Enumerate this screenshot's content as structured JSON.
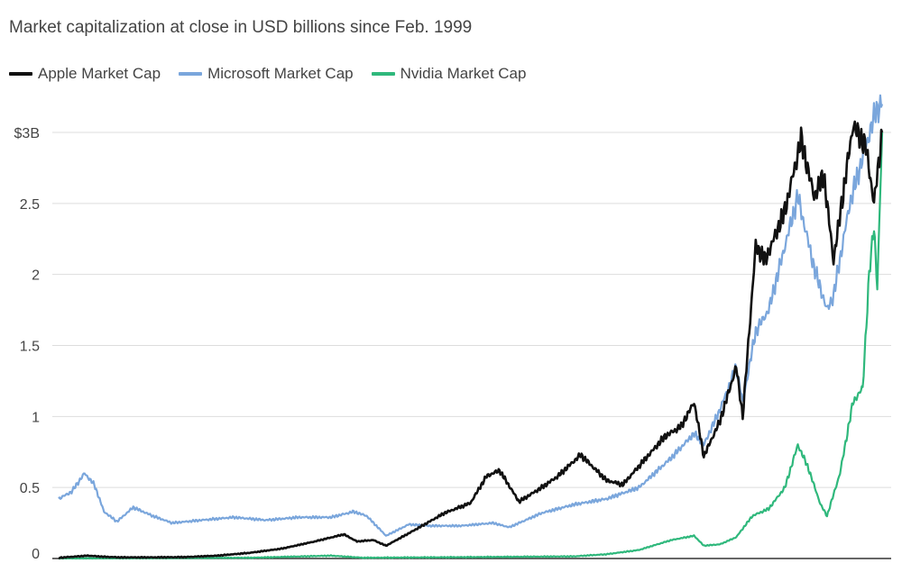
{
  "chart_data": {
    "type": "line",
    "title": "",
    "subtitle": "Market capitalization at close in USD billions since Feb. 1999",
    "xlabel": "",
    "ylabel": "",
    "xlim": [
      1999.1,
      2024.5
    ],
    "ylim": [
      0,
      3.0
    ],
    "y_ticks": [
      {
        "value": 3.0,
        "label": "$3B"
      },
      {
        "value": 2.5,
        "label": "2.5"
      },
      {
        "value": 2.0,
        "label": "2"
      },
      {
        "value": 1.5,
        "label": "1.5"
      },
      {
        "value": 1.0,
        "label": "1"
      },
      {
        "value": 0.5,
        "label": "0.5"
      },
      {
        "value": 0.0,
        "label": "0"
      }
    ],
    "grid": true,
    "legend_position": "top-left",
    "series": [
      {
        "name": "Apple Market Cap",
        "color": "#111111",
        "points": [
          [
            1999.1,
            0.005
          ],
          [
            2000.0,
            0.02
          ],
          [
            2000.5,
            0.012
          ],
          [
            2001.0,
            0.008
          ],
          [
            2002.0,
            0.008
          ],
          [
            2003.0,
            0.01
          ],
          [
            2004.0,
            0.02
          ],
          [
            2005.0,
            0.04
          ],
          [
            2006.0,
            0.07
          ],
          [
            2007.0,
            0.12
          ],
          [
            2007.9,
            0.17
          ],
          [
            2008.3,
            0.12
          ],
          [
            2008.8,
            0.13
          ],
          [
            2009.2,
            0.09
          ],
          [
            2010.0,
            0.19
          ],
          [
            2011.0,
            0.32
          ],
          [
            2011.8,
            0.39
          ],
          [
            2012.3,
            0.58
          ],
          [
            2012.7,
            0.62
          ],
          [
            2013.3,
            0.4
          ],
          [
            2014.0,
            0.5
          ],
          [
            2014.5,
            0.58
          ],
          [
            2015.2,
            0.73
          ],
          [
            2016.0,
            0.55
          ],
          [
            2016.5,
            0.52
          ],
          [
            2017.0,
            0.65
          ],
          [
            2017.8,
            0.86
          ],
          [
            2018.3,
            0.93
          ],
          [
            2018.7,
            1.1
          ],
          [
            2019.0,
            0.72
          ],
          [
            2019.5,
            0.97
          ],
          [
            2020.0,
            1.35
          ],
          [
            2020.2,
            1.0
          ],
          [
            2020.6,
            2.2
          ],
          [
            2020.9,
            2.1
          ],
          [
            2021.5,
            2.45
          ],
          [
            2022.0,
            2.95
          ],
          [
            2022.4,
            2.55
          ],
          [
            2022.7,
            2.7
          ],
          [
            2023.0,
            2.1
          ],
          [
            2023.6,
            3.05
          ],
          [
            2024.0,
            2.9
          ],
          [
            2024.25,
            2.5
          ],
          [
            2024.5,
            3.0
          ]
        ]
      },
      {
        "name": "Microsoft Market Cap",
        "color": "#7aa6dc",
        "points": [
          [
            1999.1,
            0.42
          ],
          [
            1999.5,
            0.47
          ],
          [
            1999.9,
            0.6
          ],
          [
            2000.2,
            0.52
          ],
          [
            2000.5,
            0.33
          ],
          [
            2000.9,
            0.26
          ],
          [
            2001.4,
            0.36
          ],
          [
            2002.0,
            0.3
          ],
          [
            2002.6,
            0.25
          ],
          [
            2003.5,
            0.27
          ],
          [
            2004.5,
            0.29
          ],
          [
            2005.5,
            0.27
          ],
          [
            2006.5,
            0.29
          ],
          [
            2007.5,
            0.29
          ],
          [
            2008.2,
            0.33
          ],
          [
            2008.6,
            0.3
          ],
          [
            2009.2,
            0.16
          ],
          [
            2009.9,
            0.24
          ],
          [
            2010.5,
            0.23
          ],
          [
            2011.5,
            0.23
          ],
          [
            2012.5,
            0.25
          ],
          [
            2013.0,
            0.22
          ],
          [
            2014.0,
            0.32
          ],
          [
            2015.0,
            0.38
          ],
          [
            2016.0,
            0.42
          ],
          [
            2017.0,
            0.5
          ],
          [
            2018.0,
            0.71
          ],
          [
            2018.7,
            0.88
          ],
          [
            2019.0,
            0.8
          ],
          [
            2019.5,
            1.05
          ],
          [
            2020.0,
            1.35
          ],
          [
            2020.2,
            1.1
          ],
          [
            2020.6,
            1.6
          ],
          [
            2021.0,
            1.75
          ],
          [
            2021.5,
            2.2
          ],
          [
            2021.9,
            2.55
          ],
          [
            2022.4,
            2.05
          ],
          [
            2022.8,
            1.75
          ],
          [
            2023.0,
            1.85
          ],
          [
            2023.5,
            2.5
          ],
          [
            2024.0,
            2.9
          ],
          [
            2024.3,
            3.15
          ],
          [
            2024.5,
            3.2
          ]
        ]
      },
      {
        "name": "Nvidia Market Cap",
        "color": "#2fb87c",
        "points": [
          [
            1999.1,
            0.0
          ],
          [
            2005.0,
            0.005
          ],
          [
            2007.5,
            0.02
          ],
          [
            2008.5,
            0.005
          ],
          [
            2012.0,
            0.01
          ],
          [
            2015.0,
            0.015
          ],
          [
            2016.0,
            0.03
          ],
          [
            2017.0,
            0.06
          ],
          [
            2018.0,
            0.13
          ],
          [
            2018.7,
            0.16
          ],
          [
            2019.0,
            0.09
          ],
          [
            2019.5,
            0.1
          ],
          [
            2020.0,
            0.15
          ],
          [
            2020.5,
            0.3
          ],
          [
            2021.0,
            0.35
          ],
          [
            2021.5,
            0.5
          ],
          [
            2021.9,
            0.8
          ],
          [
            2022.2,
            0.65
          ],
          [
            2022.6,
            0.38
          ],
          [
            2022.8,
            0.3
          ],
          [
            2023.2,
            0.6
          ],
          [
            2023.6,
            1.1
          ],
          [
            2023.9,
            1.2
          ],
          [
            2024.1,
            2.0
          ],
          [
            2024.25,
            2.35
          ],
          [
            2024.35,
            1.9
          ],
          [
            2024.5,
            3.0
          ]
        ]
      }
    ]
  }
}
